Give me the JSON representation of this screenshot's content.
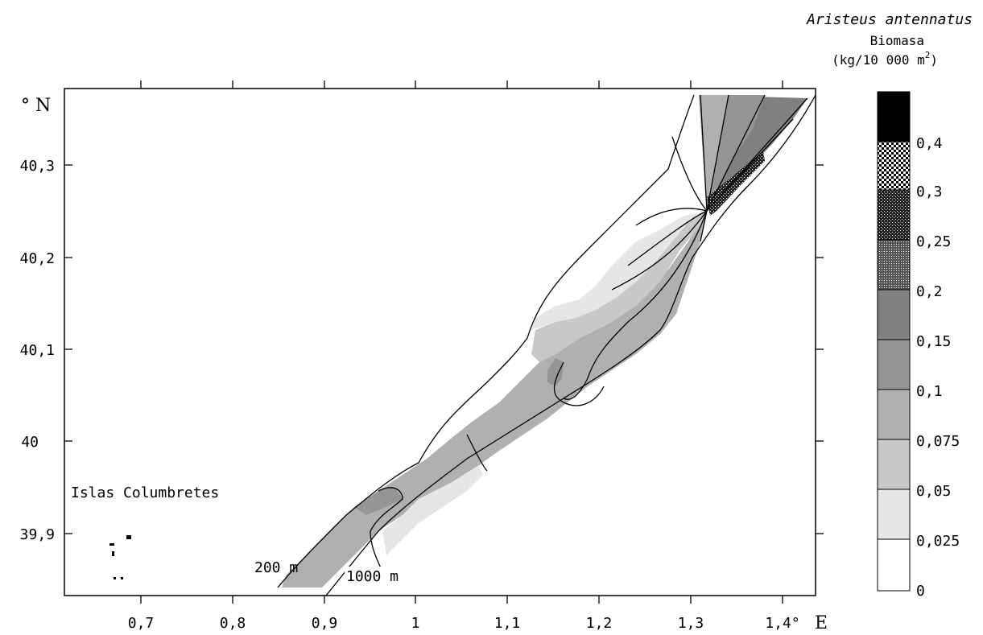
{
  "title": {
    "species": "Aristeus antennatus",
    "variable": "Biomasa",
    "unit": "(kg/10 000 m",
    "unit_sup": "2",
    "unit_close": ")"
  },
  "axes": {
    "lat_unit": "° N",
    "lon_unit": "E",
    "lat_ticks": [
      "40,3",
      "40,2",
      "40,1",
      "40",
      "39,9"
    ],
    "lon_ticks": [
      "0,7",
      "0,8",
      "0,9",
      "1",
      "1,1",
      "1,2",
      "1,3",
      "1,4°"
    ],
    "lon_range": [
      0.62,
      1.43
    ],
    "lat_range": [
      39.84,
      40.38
    ]
  },
  "labels": {
    "islands": "Islas Columbretes",
    "isobath_200": "200 m",
    "isobath_1000": "1000 m"
  },
  "legend": {
    "breaks": [
      "0,4",
      "0,3",
      "0,25",
      "0,2",
      "0,15",
      "0,1",
      "0,075",
      "0,05",
      "0,025",
      "0"
    ],
    "classes": [
      {
        "range": "> 0,4",
        "color": "#000000",
        "pattern": "solid"
      },
      {
        "range": "0,3 – 0,4",
        "color": "#000000",
        "pattern": "checker"
      },
      {
        "range": "0,25 – 0,3",
        "color": "#000000",
        "pattern": "dense-dots"
      },
      {
        "range": "0,2 – 0,25",
        "color": "#000000",
        "pattern": "fine-dots"
      },
      {
        "range": "0,15 – 0,2",
        "color": "#808080",
        "pattern": "solid"
      },
      {
        "range": "0,1 – 0,15",
        "color": "#959595",
        "pattern": "solid"
      },
      {
        "range": "0,075 – 0,1",
        "color": "#b0b0b0",
        "pattern": "solid"
      },
      {
        "range": "0,05 – 0,075",
        "color": "#c8c8c8",
        "pattern": "solid"
      },
      {
        "range": "0,025 – 0,05",
        "color": "#e6e6e6",
        "pattern": "solid"
      },
      {
        "range": "0 – 0,025",
        "color": "#ffffff",
        "pattern": "solid"
      }
    ]
  }
}
